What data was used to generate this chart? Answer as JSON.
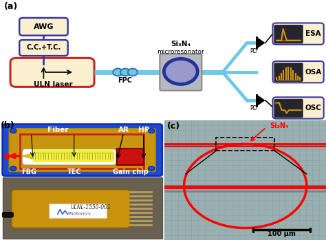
{
  "fig_width": 4.74,
  "fig_height": 3.49,
  "dpi": 100,
  "panel_a_label": "(a)",
  "panel_b_label": "(b)",
  "panel_c_label": "(c)",
  "awg_label": "AWG",
  "cctc_label": "C.C.+T.C.",
  "uln_label": "ULN laser",
  "fpc_label": "FPC",
  "microres_label1": "Si₃N₄",
  "microres_label2": "microresonator",
  "pd_label": "PD",
  "esa_label": "ESA",
  "osa_label": "OSA",
  "osc_label": "OSC",
  "fiber_label": "Fiber",
  "ar_label": "AR",
  "hr_label": "HR",
  "fbg_label": "FBG",
  "tec_label": "TEC",
  "gain_label": "Gain chip",
  "scale_label": "100 μm",
  "si3n4_label": "Si₃N₄",
  "box_purple": "#3a35a0",
  "box_red": "#cc2222",
  "box_fill_light": "#faf0d0",
  "fiber_color": "#70c8e8",
  "dark_bg": "#252530",
  "gold_color": "#d4950a",
  "blue_panel": "#1e4acc",
  "pcb_gold": "#c8960c",
  "micro_bg": "#9ab0b0"
}
